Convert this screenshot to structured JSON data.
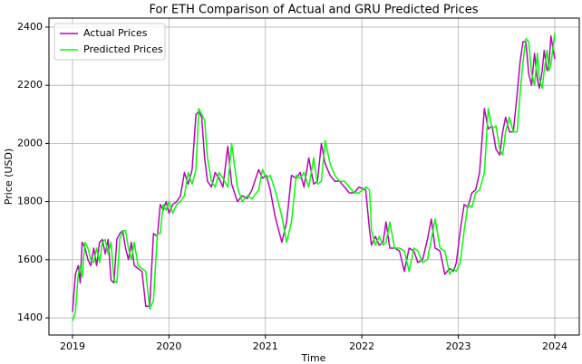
{
  "chart_data": {
    "type": "line",
    "title": "For ETH Comparison of Actual and GRU Predicted Prices",
    "x_label": "Time",
    "y_label": "Price (USD)",
    "x": [
      2019.0,
      2019.03,
      2019.06,
      2019.08,
      2019.1,
      2019.13,
      2019.16,
      2019.19,
      2019.22,
      2019.25,
      2019.28,
      2019.31,
      2019.34,
      2019.37,
      2019.4,
      2019.43,
      2019.46,
      2019.49,
      2019.52,
      2019.55,
      2019.58,
      2019.61,
      2019.64,
      2019.68,
      2019.72,
      2019.76,
      2019.8,
      2019.84,
      2019.88,
      2019.91,
      2019.94,
      2019.97,
      2020.0,
      2020.04,
      2020.08,
      2020.12,
      2020.16,
      2020.2,
      2020.24,
      2020.28,
      2020.31,
      2020.34,
      2020.37,
      2020.4,
      2020.44,
      2020.48,
      2020.52,
      2020.56,
      2020.61,
      2020.65,
      2020.71,
      2020.76,
      2020.81,
      2020.86,
      2020.93,
      2020.97,
      2021.01,
      2021.05,
      2021.1,
      2021.17,
      2021.22,
      2021.27,
      2021.32,
      2021.36,
      2021.4,
      2021.45,
      2021.5,
      2021.54,
      2021.58,
      2021.62,
      2021.67,
      2021.72,
      2021.77,
      2021.82,
      2021.87,
      2021.92,
      2021.97,
      2022.04,
      2022.08,
      2022.1,
      2022.14,
      2022.18,
      2022.22,
      2022.25,
      2022.29,
      2022.34,
      2022.39,
      2022.44,
      2022.49,
      2022.54,
      2022.58,
      2022.63,
      2022.68,
      2022.72,
      2022.76,
      2022.81,
      2022.86,
      2022.91,
      2022.95,
      2022.98,
      2023.02,
      2023.06,
      2023.1,
      2023.14,
      2023.18,
      2023.22,
      2023.27,
      2023.31,
      2023.35,
      2023.39,
      2023.43,
      2023.46,
      2023.49,
      2023.53,
      2023.57,
      2023.61,
      2023.64,
      2023.67,
      2023.7,
      2023.73,
      2023.76,
      2023.79,
      2023.82,
      2023.84,
      2023.87,
      2023.89,
      2023.92,
      2023.94,
      2023.96,
      2024.0
    ],
    "series": [
      {
        "name": "Actual Prices",
        "color": "#bf00bf",
        "values": [
          1420,
          1550,
          1580,
          1520,
          1660,
          1640,
          1600,
          1580,
          1640,
          1580,
          1660,
          1670,
          1620,
          1670,
          1530,
          1520,
          1670,
          1690,
          1700,
          1640,
          1600,
          1660,
          1580,
          1570,
          1560,
          1440,
          1440,
          1690,
          1680,
          1790,
          1770,
          1800,
          1760,
          1790,
          1800,
          1820,
          1900,
          1860,
          1910,
          2100,
          2110,
          2090,
          1950,
          1870,
          1850,
          1900,
          1880,
          1850,
          1990,
          1860,
          1800,
          1820,
          1810,
          1840,
          1910,
          1880,
          1890,
          1840,
          1750,
          1660,
          1730,
          1890,
          1880,
          1900,
          1850,
          1950,
          1860,
          1870,
          2000,
          1930,
          1890,
          1870,
          1870,
          1850,
          1830,
          1830,
          1850,
          1840,
          1700,
          1650,
          1680,
          1650,
          1660,
          1730,
          1640,
          1640,
          1630,
          1560,
          1640,
          1630,
          1590,
          1600,
          1670,
          1740,
          1640,
          1630,
          1550,
          1570,
          1560,
          1590,
          1700,
          1790,
          1780,
          1830,
          1840,
          1900,
          2120,
          2050,
          2060,
          1980,
          1960,
          2040,
          2090,
          2040,
          2040,
          2170,
          2280,
          2350,
          2350,
          2240,
          2200,
          2310,
          2220,
          2190,
          2250,
          2320,
          2250,
          2270,
          2370,
          2290
        ]
      },
      {
        "name": "Predicted Prices",
        "color": "#00ff00",
        "values": [
          1390,
          1420,
          1550,
          1580,
          1540,
          1660,
          1640,
          1600,
          1590,
          1640,
          1590,
          1660,
          1670,
          1620,
          1660,
          1530,
          1520,
          1670,
          1700,
          1700,
          1640,
          1600,
          1660,
          1580,
          1570,
          1560,
          1430,
          1460,
          1690,
          1690,
          1790,
          1770,
          1800,
          1760,
          1790,
          1800,
          1820,
          1900,
          1860,
          1910,
          2120,
          2100,
          2080,
          1950,
          1870,
          1850,
          1900,
          1880,
          1850,
          2000,
          1850,
          1800,
          1820,
          1810,
          1840,
          1910,
          1880,
          1890,
          1840,
          1750,
          1660,
          1730,
          1890,
          1880,
          1900,
          1850,
          1950,
          1860,
          1870,
          2010,
          1930,
          1890,
          1870,
          1870,
          1850,
          1830,
          1830,
          1850,
          1840,
          1700,
          1650,
          1680,
          1650,
          1660,
          1730,
          1640,
          1640,
          1630,
          1560,
          1640,
          1630,
          1590,
          1600,
          1670,
          1740,
          1640,
          1630,
          1550,
          1570,
          1560,
          1590,
          1700,
          1790,
          1780,
          1830,
          1840,
          1900,
          2120,
          2050,
          2060,
          1980,
          1960,
          2040,
          2090,
          2040,
          2040,
          2170,
          2280,
          2360,
          2350,
          2240,
          2200,
          2310,
          2220,
          2190,
          2250,
          2320,
          2250,
          2270,
          2380
        ]
      }
    ],
    "xlim": [
      2018.756,
      2024.254
    ],
    "xticks": [
      2019,
      2020,
      2021,
      2022,
      2023,
      2024
    ],
    "ylim": [
      1341,
      2431
    ],
    "yticks": [
      1400,
      1600,
      1800,
      2000,
      2200,
      2400
    ],
    "grid": true,
    "legend": "upper left"
  }
}
